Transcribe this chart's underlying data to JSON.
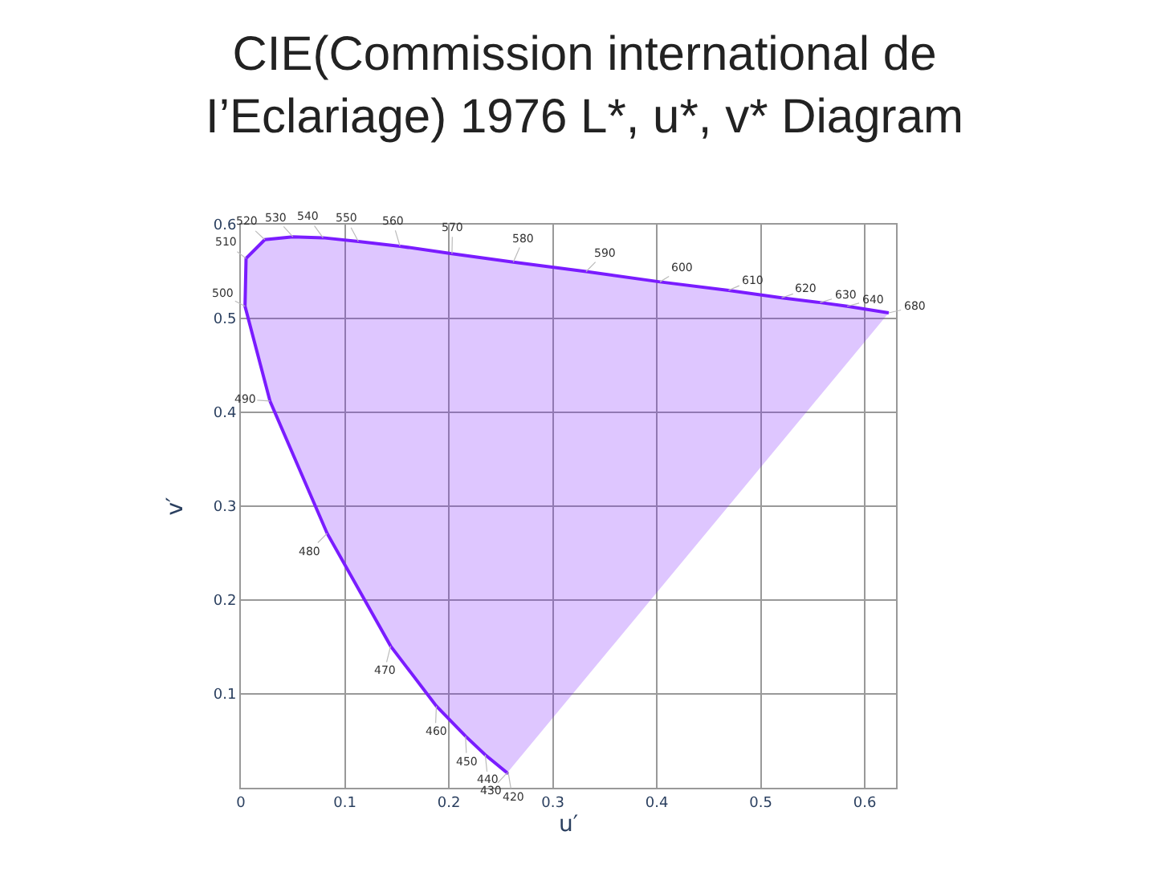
{
  "chart_data": {
    "type": "area",
    "title": "CIE(Commission international de\nI’Eclariage) 1976 L*, u*, v* Diagram",
    "xlabel": "u′",
    "ylabel": "v′",
    "series": [
      {
        "color": "#7a1cff",
        "x": [
          0.257,
          0.256,
          0.235,
          0.216,
          0.188,
          0.144,
          0.083,
          0.028,
          0.004,
          0.005,
          0.023,
          0.05,
          0.079,
          0.113,
          0.153,
          0.203,
          0.262,
          0.332,
          0.403,
          0.469,
          0.52,
          0.557,
          0.583,
          0.623
        ],
        "values": [
          0.017,
          0.016,
          0.035,
          0.055,
          0.087,
          0.151,
          0.271,
          0.412,
          0.513,
          0.564,
          0.584,
          0.587,
          0.586,
          0.582,
          0.577,
          0.569,
          0.56,
          0.55,
          0.539,
          0.53,
          0.522,
          0.517,
          0.513,
          0.506
        ]
      }
    ],
    "annotations": [
      {
        "text": "420",
        "x": 0.257,
        "y": 0.017
      },
      {
        "text": "430",
        "x": 0.256,
        "y": 0.016
      },
      {
        "text": "440",
        "x": 0.235,
        "y": 0.035
      },
      {
        "text": "450",
        "x": 0.216,
        "y": 0.055
      },
      {
        "text": "460",
        "x": 0.188,
        "y": 0.087
      },
      {
        "text": "470",
        "x": 0.144,
        "y": 0.151
      },
      {
        "text": "480",
        "x": 0.083,
        "y": 0.271
      },
      {
        "text": "490",
        "x": 0.028,
        "y": 0.412
      },
      {
        "text": "500",
        "x": 0.004,
        "y": 0.513
      },
      {
        "text": "510",
        "x": 0.005,
        "y": 0.564
      },
      {
        "text": "520",
        "x": 0.023,
        "y": 0.584
      },
      {
        "text": "530",
        "x": 0.05,
        "y": 0.587
      },
      {
        "text": "540",
        "x": 0.079,
        "y": 0.586
      },
      {
        "text": "550",
        "x": 0.113,
        "y": 0.582
      },
      {
        "text": "560",
        "x": 0.153,
        "y": 0.577
      },
      {
        "text": "570",
        "x": 0.203,
        "y": 0.569
      },
      {
        "text": "580",
        "x": 0.262,
        "y": 0.56
      },
      {
        "text": "590",
        "x": 0.332,
        "y": 0.55
      },
      {
        "text": "600",
        "x": 0.403,
        "y": 0.539
      },
      {
        "text": "610",
        "x": 0.469,
        "y": 0.53
      },
      {
        "text": "620",
        "x": 0.52,
        "y": 0.522
      },
      {
        "text": "630",
        "x": 0.557,
        "y": 0.517
      },
      {
        "text": "640",
        "x": 0.583,
        "y": 0.513
      },
      {
        "text": "680",
        "x": 0.623,
        "y": 0.506
      }
    ],
    "xlim": [
      0,
      0.63
    ],
    "ylim": [
      0,
      0.6
    ],
    "xticks": [
      0,
      0.1,
      0.2,
      0.3,
      0.4,
      0.5,
      0.6
    ],
    "yticks": [
      0.1,
      0.2,
      0.3,
      0.4,
      0.5,
      0.6
    ],
    "grid": true,
    "marker": "none",
    "line_style": "solid"
  }
}
